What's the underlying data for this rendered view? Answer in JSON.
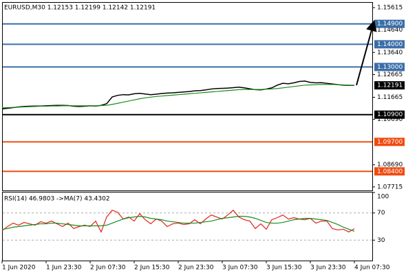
{
  "chart_data": [
    {
      "type": "line",
      "title": "EURUSD,M30  1.12153 1.12199 1.12142 1.12191",
      "ylim": [
        1.0756,
        1.1583
      ],
      "yticks": [
        1.15615,
        {
          "value": 1.1464,
          "label": "1.14640"
        },
        {
          "value": 1.1364,
          "label": "1.13640"
        },
        1.12665,
        1.11665,
        {
          "value": 1.1069,
          "label": "1.10690"
        },
        {
          "value": 1.0869,
          "label": "1.08690"
        },
        1.07715
      ],
      "series": [
        {
          "color": "#000000",
          "values": [
            1.1115,
            1.1118,
            1.1121,
            1.1124,
            1.1126,
            1.1127,
            1.1128,
            1.1128,
            1.1129,
            1.113,
            1.1131,
            1.1131,
            1.113,
            1.1127,
            1.1126,
            1.1127,
            1.1129,
            1.1128,
            1.1131,
            1.1138,
            1.1168,
            1.1175,
            1.1178,
            1.1177,
            1.1182,
            1.1184,
            1.1181,
            1.1178,
            1.118,
            1.1183,
            1.1185,
            1.1186,
            1.1188,
            1.119,
            1.1192,
            1.1195,
            1.1196,
            1.1199,
            1.1203,
            1.1205,
            1.1206,
            1.1207,
            1.1209,
            1.1211,
            1.1208,
            1.1204,
            1.12,
            1.1199,
            1.1203,
            1.1208,
            1.122,
            1.1228,
            1.1226,
            1.123,
            1.1236,
            1.1238,
            1.1232,
            1.123,
            1.1231,
            1.1228,
            1.1225,
            1.1222,
            1.122,
            1.1219,
            1.1219
          ]
        },
        {
          "color": "#1a8a1a",
          "values": [
            1.112,
            1.1121,
            1.1122,
            1.1123,
            1.1124,
            1.1125,
            1.1126,
            1.1127,
            1.1127,
            1.1128,
            1.1128,
            1.1129,
            1.1129,
            1.1129,
            1.1129,
            1.1129,
            1.1129,
            1.1129,
            1.113,
            1.1131,
            1.1135,
            1.114,
            1.1145,
            1.115,
            1.1155,
            1.116,
            1.1164,
            1.1167,
            1.117,
            1.1172,
            1.1174,
            1.1176,
            1.1178,
            1.118,
            1.1182,
            1.1184,
            1.1186,
            1.1188,
            1.119,
            1.1192,
            1.1194,
            1.1196,
            1.1198,
            1.12,
            1.1201,
            1.1201,
            1.1201,
            1.1201,
            1.1202,
            1.1203,
            1.1205,
            1.1208,
            1.1211,
            1.1214,
            1.1217,
            1.122,
            1.1221,
            1.1222,
            1.1223,
            1.1223,
            1.1223,
            1.1222,
            1.1221,
            1.122,
            1.1219
          ]
        }
      ],
      "levels": [
        {
          "value": 1.149,
          "label": "1.14900",
          "color": "#3a6ea8"
        },
        {
          "value": 1.14,
          "label": "1.14000",
          "color": "#3a6ea8"
        },
        {
          "value": 1.13,
          "label": "1.13000",
          "color": "#3a6ea8"
        },
        {
          "value": 1.109,
          "label": "1.10900",
          "color": "#000000"
        },
        {
          "value": 1.097,
          "label": "1.09700",
          "color": "#f04a10"
        },
        {
          "value": 1.084,
          "label": "1.08400",
          "color": "#f04a10"
        }
      ],
      "current_price": {
        "value": 1.12191,
        "color": "#000000"
      }
    },
    {
      "type": "line",
      "title": "RSI(14) 46.9803  ->MA(7) 43.4302",
      "ylim": [
        0,
        100
      ],
      "yticks": [
        100,
        70,
        30
      ],
      "categories": [
        "1 Jun 2020",
        null,
        null,
        null,
        null,
        null,
        null,
        null,
        "1 Jun 23:30",
        null,
        null,
        null,
        null,
        null,
        null,
        null,
        "2 Jun 07:30",
        null,
        null,
        null,
        null,
        null,
        null,
        null,
        "2 Jun 15:30",
        null,
        null,
        null,
        null,
        null,
        null,
        null,
        "2 Jun 23:30",
        null,
        null,
        null,
        null,
        null,
        null,
        null,
        "3 Jun 07:30",
        null,
        null,
        null,
        null,
        null,
        null,
        null,
        "3 Jun 15:30",
        null,
        null,
        null,
        null,
        null,
        null,
        null,
        "3 Jun 23:30",
        null,
        null,
        null,
        null,
        null,
        null,
        null,
        "4 Jun 07:30"
      ],
      "series": [
        {
          "color": "#e0201b",
          "values": [
            44,
            50,
            55,
            52,
            56,
            54,
            52,
            57,
            55,
            58,
            54,
            50,
            55,
            47,
            50,
            52,
            50,
            58,
            42,
            64,
            74,
            71,
            61,
            64,
            58,
            69,
            60,
            54,
            61,
            58,
            50,
            54,
            55,
            53,
            54,
            60,
            54,
            61,
            67,
            64,
            61,
            67,
            74,
            64,
            60,
            58,
            47,
            54,
            46,
            60,
            63,
            67,
            61,
            63,
            61,
            60,
            62,
            55,
            58,
            58,
            47,
            45,
            46,
            42,
            47
          ]
        },
        {
          "color": "#1a8a1a",
          "values": [
            46,
            47,
            49,
            50,
            51,
            52,
            53,
            54,
            54,
            55,
            55,
            54,
            53,
            52,
            51,
            51,
            51,
            51,
            51,
            52,
            55,
            58,
            61,
            63,
            64,
            65,
            64,
            62,
            61,
            60,
            58,
            57,
            56,
            55,
            55,
            55,
            56,
            57,
            58,
            60,
            62,
            63,
            64,
            65,
            65,
            64,
            62,
            59,
            56,
            55,
            55,
            56,
            58,
            60,
            61,
            62,
            62,
            61,
            60,
            59,
            56,
            53,
            49,
            46,
            43
          ]
        }
      ]
    }
  ]
}
